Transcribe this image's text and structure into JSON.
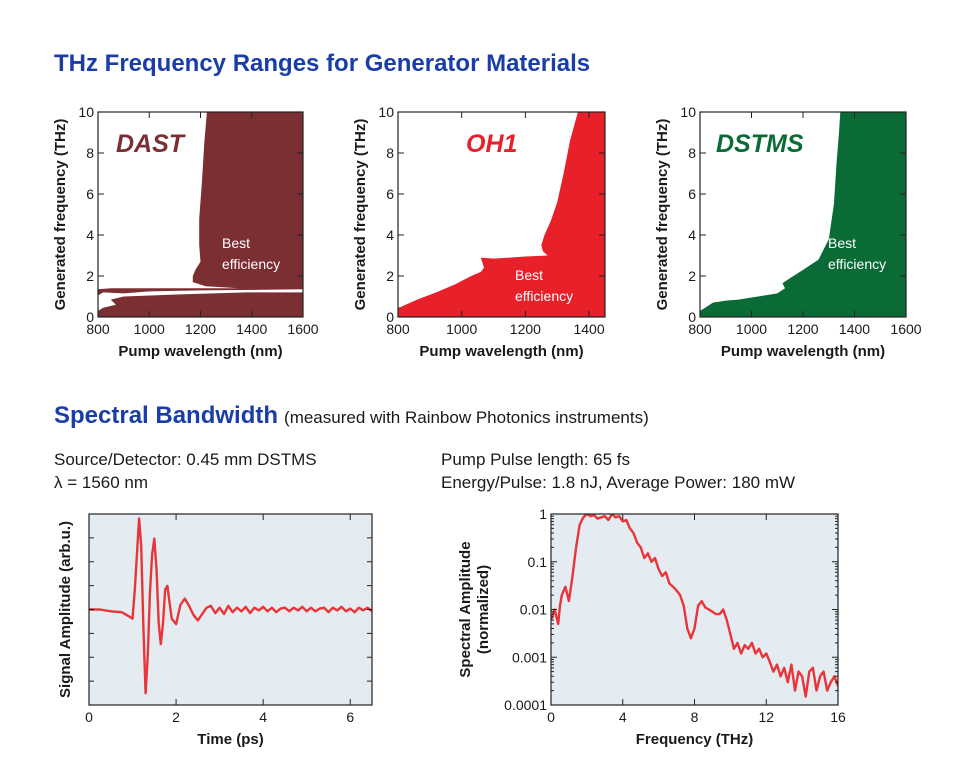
{
  "title": "THz Frequency Ranges for Generator Materials",
  "section2": {
    "title": "Spectral Bandwidth",
    "subtitle": "(measured with Rainbow Photonics instruments)"
  },
  "info": {
    "source": "Source/Detector: 0.45 mm DSTMS",
    "lambda": "λ = 1560 nm",
    "pulse": "Pump Pulse length: 65 fs",
    "energy": "Energy/Pulse: 1.8 nJ, Average Power: 180 mW"
  },
  "colors": {
    "dast": "#7b2f33",
    "oh1": "#e8202a",
    "dstms": "#0b6b36",
    "title": "#1a3ea6",
    "plotbg": "#e4ecf1",
    "trace": "#e8353a"
  },
  "chart_data": [
    {
      "type": "area",
      "label": "DAST",
      "color_key": "dast",
      "xlabel": "Pump wavelength (nm)",
      "ylabel": "Generated frequency (THz)",
      "xlim": [
        800,
        1600
      ],
      "ylim": [
        0,
        10
      ],
      "xticks": [
        800,
        1000,
        1200,
        1400,
        1600
      ],
      "yticks": [
        0,
        2,
        4,
        6,
        8,
        10
      ],
      "annotation": [
        "Best",
        "efficiency"
      ],
      "regions": [
        [
          [
            800,
            0
          ],
          [
            1600,
            0
          ],
          [
            1600,
            1.2
          ],
          [
            1380,
            1.2
          ],
          [
            1250,
            1.15
          ],
          [
            1120,
            1.1
          ],
          [
            900,
            1.0
          ],
          [
            850,
            0.85
          ],
          [
            870,
            0.6
          ],
          [
            820,
            0.45
          ],
          [
            800,
            0.3
          ]
        ],
        [
          [
            800,
            1.05
          ],
          [
            820,
            1.2
          ],
          [
            900,
            1.15
          ],
          [
            1000,
            1.25
          ],
          [
            1200,
            1.3
          ],
          [
            1400,
            1.32
          ],
          [
            1600,
            1.35
          ],
          [
            1600,
            10
          ],
          [
            1225,
            10
          ],
          [
            1215,
            8.5
          ],
          [
            1205,
            6.5
          ],
          [
            1195,
            4.8
          ],
          [
            1195,
            3.5
          ],
          [
            1200,
            2.7
          ],
          [
            1180,
            2.3
          ],
          [
            1170,
            2.0
          ],
          [
            1170,
            1.7
          ],
          [
            1220,
            1.5
          ],
          [
            1350,
            1.4
          ],
          [
            1000,
            1.4
          ],
          [
            850,
            1.4
          ],
          [
            800,
            1.35
          ]
        ]
      ]
    },
    {
      "type": "area",
      "label": "OH1",
      "color_key": "oh1",
      "xlabel": "Pump wavelength (nm)",
      "ylabel": "Generated frequency (THz)",
      "xlim": [
        800,
        1450
      ],
      "ylim": [
        0,
        10
      ],
      "xticks": [
        800,
        1000,
        1200,
        1400
      ],
      "yticks": [
        0,
        2,
        4,
        6,
        8,
        10
      ],
      "annotation": [
        "Best",
        "efficiency"
      ],
      "regions": [
        [
          [
            800,
            0
          ],
          [
            1450,
            0
          ],
          [
            1450,
            10
          ],
          [
            1365,
            10
          ],
          [
            1340,
            8.6
          ],
          [
            1320,
            7.0
          ],
          [
            1300,
            5.6
          ],
          [
            1280,
            4.7
          ],
          [
            1260,
            4.0
          ],
          [
            1250,
            3.5
          ],
          [
            1255,
            3.2
          ],
          [
            1270,
            3.0
          ],
          [
            1200,
            2.95
          ],
          [
            1150,
            2.9
          ],
          [
            1100,
            2.85
          ],
          [
            1060,
            2.9
          ],
          [
            1070,
            2.4
          ],
          [
            1060,
            2.2
          ],
          [
            1030,
            2.0
          ],
          [
            980,
            1.6
          ],
          [
            920,
            1.2
          ],
          [
            860,
            0.85
          ],
          [
            810,
            0.5
          ],
          [
            800,
            0.45
          ]
        ]
      ]
    },
    {
      "type": "area",
      "label": "DSTMS",
      "color_key": "dstms",
      "xlabel": "Pump wavelength (nm)",
      "ylabel": "Generated frequency (THz)",
      "xlim": [
        800,
        1600
      ],
      "ylim": [
        0,
        10
      ],
      "xticks": [
        800,
        1000,
        1200,
        1400,
        1600
      ],
      "yticks": [
        0,
        2,
        4,
        6,
        8,
        10
      ],
      "annotation": [
        "Best",
        "efficiency"
      ],
      "regions": [
        [
          [
            800,
            0.3
          ],
          [
            820,
            0.45
          ],
          [
            850,
            0.7
          ],
          [
            900,
            0.8
          ],
          [
            950,
            0.85
          ],
          [
            1000,
            0.95
          ],
          [
            1050,
            1.05
          ],
          [
            1100,
            1.15
          ],
          [
            1130,
            1.4
          ],
          [
            1120,
            1.65
          ],
          [
            1150,
            1.9
          ],
          [
            1200,
            2.3
          ],
          [
            1260,
            2.8
          ],
          [
            1300,
            3.8
          ],
          [
            1320,
            5.5
          ],
          [
            1330,
            7.5
          ],
          [
            1340,
            9.0
          ],
          [
            1345,
            10
          ],
          [
            1600,
            10
          ],
          [
            1600,
            0
          ],
          [
            800,
            0
          ]
        ]
      ]
    },
    {
      "type": "line",
      "xlabel": "Time (ps)",
      "ylabel": "Signal Amplitude (arb.u.)",
      "xlim": [
        0,
        6.5
      ],
      "ylim": [
        -1.05,
        1.05
      ],
      "xticks": [
        0,
        2,
        4,
        6
      ],
      "yticks": [],
      "series": [
        {
          "x": [
            0,
            0.25,
            0.5,
            0.75,
            0.9,
            1.0,
            1.05,
            1.1,
            1.15,
            1.2,
            1.25,
            1.3,
            1.35,
            1.4,
            1.45,
            1.5,
            1.55,
            1.6,
            1.65,
            1.7,
            1.75,
            1.8,
            1.85,
            1.9,
            2.0,
            2.1,
            2.2,
            2.3,
            2.4,
            2.5,
            2.6,
            2.7,
            2.8,
            2.9,
            3.0,
            3.1,
            3.2,
            3.3,
            3.4,
            3.5,
            3.6,
            3.7,
            3.8,
            3.9,
            4.0,
            4.1,
            4.2,
            4.3,
            4.4,
            4.5,
            4.6,
            4.7,
            4.8,
            4.9,
            5.0,
            5.1,
            5.2,
            5.3,
            5.4,
            5.5,
            5.6,
            5.7,
            5.8,
            5.9,
            6.0,
            6.1,
            6.2,
            6.3,
            6.4,
            6.5
          ],
          "y": [
            0,
            0,
            -0.02,
            -0.03,
            -0.07,
            -0.1,
            0.2,
            0.6,
            1.0,
            0.7,
            -0.2,
            -0.92,
            -0.5,
            0.2,
            0.6,
            0.78,
            0.45,
            -0.15,
            -0.38,
            -0.15,
            0.22,
            0.26,
            0.08,
            -0.1,
            -0.16,
            0.05,
            0.12,
            0.04,
            -0.06,
            -0.12,
            -0.05,
            0.02,
            0.04,
            -0.04,
            0.02,
            -0.05,
            0.04,
            -0.03,
            0.02,
            -0.02,
            0.03,
            -0.04,
            0.02,
            -0.01,
            0.03,
            -0.02,
            0.02,
            -0.03,
            0.01,
            0.02,
            -0.02,
            0.02,
            -0.01,
            0.03,
            -0.02,
            0.02,
            -0.02,
            0.01,
            0.02,
            -0.03,
            0.02,
            -0.01,
            0.03,
            -0.02,
            0.01,
            -0.03,
            0.02,
            -0.01,
            0.02,
            -0.02
          ]
        }
      ]
    },
    {
      "type": "line",
      "yscale": "log",
      "xlabel": "Frequency (THz)",
      "ylabel": "Spectral Amplitude (normalized)",
      "xlim": [
        0,
        16
      ],
      "ylim": [
        0.0001,
        1
      ],
      "xticks": [
        0,
        4,
        8,
        12,
        16
      ],
      "yticks": [
        1,
        0.1,
        0.01,
        0.001,
        0.0001
      ],
      "yticklabels": [
        "1",
        "0.1",
        "0.01",
        "0.001",
        "0.0001"
      ],
      "series": [
        {
          "x": [
            0,
            0.2,
            0.4,
            0.5,
            0.6,
            0.8,
            1.0,
            1.2,
            1.4,
            1.6,
            1.8,
            2.0,
            2.2,
            2.4,
            2.6,
            2.8,
            3.0,
            3.2,
            3.4,
            3.6,
            3.8,
            4.0,
            4.2,
            4.4,
            4.6,
            4.8,
            5.0,
            5.2,
            5.4,
            5.6,
            5.8,
            6.0,
            6.2,
            6.4,
            6.6,
            6.8,
            7.0,
            7.2,
            7.4,
            7.6,
            7.8,
            8.0,
            8.2,
            8.4,
            8.6,
            8.8,
            9.0,
            9.2,
            9.4,
            9.6,
            9.8,
            10.0,
            10.2,
            10.4,
            10.6,
            10.8,
            11.0,
            11.2,
            11.4,
            11.6,
            11.8,
            12.0,
            12.2,
            12.4,
            12.6,
            12.8,
            13.0,
            13.2,
            13.4,
            13.6,
            13.8,
            14.0,
            14.2,
            14.4,
            14.6,
            14.8,
            15.0,
            15.2,
            15.4,
            15.6,
            15.8,
            16.0
          ],
          "y": [
            0.006,
            0.01,
            0.005,
            0.012,
            0.02,
            0.03,
            0.015,
            0.05,
            0.2,
            0.6,
            0.85,
            1.0,
            0.9,
            0.95,
            0.8,
            0.85,
            0.9,
            0.75,
            1.0,
            0.85,
            0.9,
            0.7,
            0.75,
            0.5,
            0.4,
            0.25,
            0.2,
            0.12,
            0.15,
            0.1,
            0.12,
            0.07,
            0.05,
            0.06,
            0.035,
            0.03,
            0.025,
            0.02,
            0.012,
            0.004,
            0.0025,
            0.004,
            0.012,
            0.015,
            0.011,
            0.01,
            0.009,
            0.008,
            0.008,
            0.01,
            0.006,
            0.003,
            0.0015,
            0.002,
            0.0012,
            0.0018,
            0.0015,
            0.002,
            0.0012,
            0.0015,
            0.001,
            0.0012,
            0.0008,
            0.0005,
            0.0007,
            0.0004,
            0.0006,
            0.0003,
            0.0007,
            0.0002,
            0.0005,
            0.0004,
            0.00015,
            0.0005,
            0.0006,
            0.0002,
            0.0004,
            0.0005,
            0.0002,
            0.0003,
            0.0004,
            0.00025
          ]
        }
      ]
    }
  ]
}
